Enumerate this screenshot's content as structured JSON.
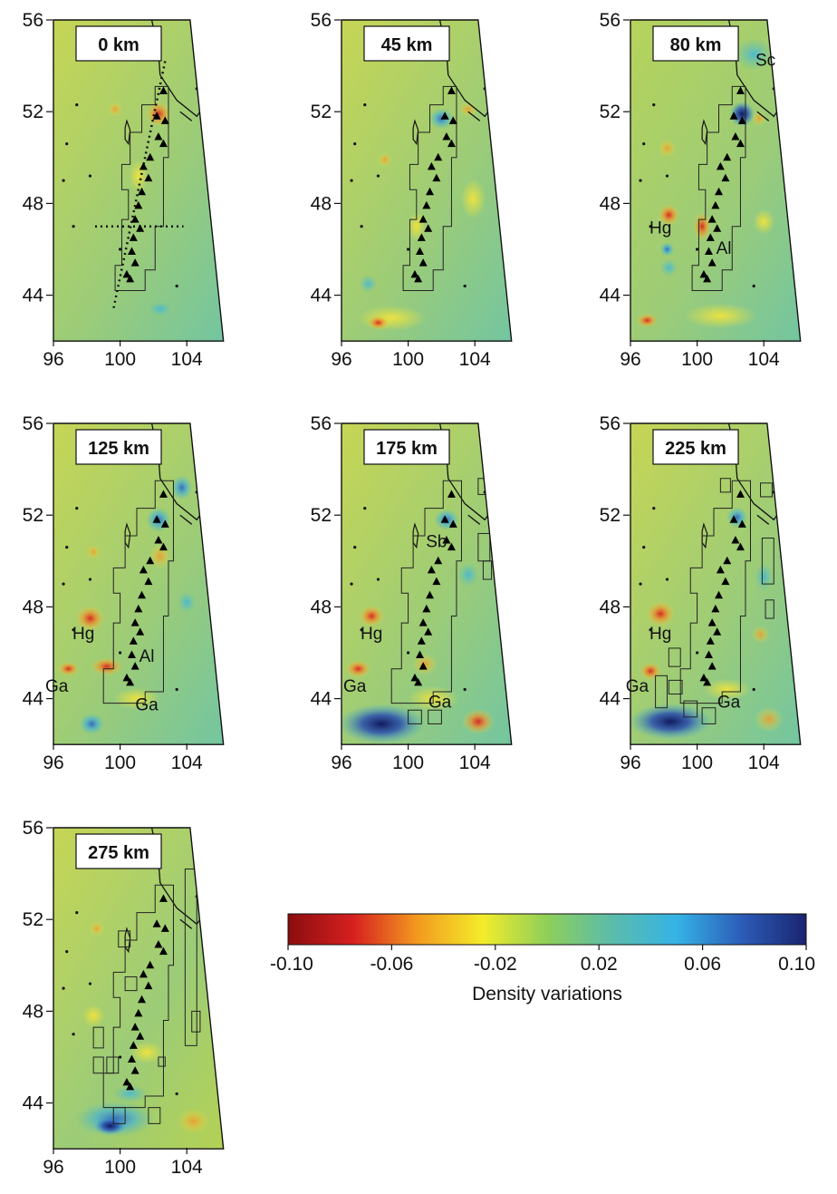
{
  "lon_ticks": [
    "96",
    "100",
    "104"
  ],
  "lat_ticks": [
    "56",
    "52",
    "48",
    "44"
  ],
  "panels": [
    {
      "depth_label": "0 km",
      "regions": []
    },
    {
      "depth_label": "45 km",
      "regions": []
    },
    {
      "depth_label": "80 km",
      "regions": [
        {
          "text": "Sc",
          "lon": 104.1,
          "lat": 54.0
        },
        {
          "text": "Hg",
          "lon": 97.8,
          "lat": 46.7
        },
        {
          "text": "Al",
          "lon": 101.6,
          "lat": 45.8
        }
      ]
    },
    {
      "depth_label": "125 km",
      "regions": [
        {
          "text": "Hg",
          "lon": 97.8,
          "lat": 46.6
        },
        {
          "text": "Al",
          "lon": 101.6,
          "lat": 45.6
        },
        {
          "text": "Ga",
          "lon": 96.2,
          "lat": 44.3
        },
        {
          "text": "Ga",
          "lon": 101.6,
          "lat": 43.5
        }
      ]
    },
    {
      "depth_label": "175 km",
      "regions": [
        {
          "text": "Sb",
          "lon": 101.7,
          "lat": 50.6
        },
        {
          "text": "Hg",
          "lon": 97.8,
          "lat": 46.6
        },
        {
          "text": "Ga",
          "lon": 96.8,
          "lat": 44.3
        },
        {
          "text": "Ga",
          "lon": 101.9,
          "lat": 43.6
        }
      ]
    },
    {
      "depth_label": "225 km",
      "regions": [
        {
          "text": "Hg",
          "lon": 97.8,
          "lat": 46.6
        },
        {
          "text": "Ga",
          "lon": 96.4,
          "lat": 44.3
        },
        {
          "text": "Ga",
          "lon": 101.9,
          "lat": 43.6
        }
      ]
    },
    {
      "depth_label": "275 km",
      "regions": []
    }
  ],
  "colorbar": {
    "title": "Density variations",
    "ticks": [
      "-0.10",
      "-0.06",
      "-0.02",
      "0.02",
      "0.06",
      "0.10"
    ],
    "min": -0.1,
    "max": 0.1,
    "stops": [
      "#8b0d0f",
      "#d61f1f",
      "#f39a1f",
      "#f3ec2a",
      "#8ecf5a",
      "#5bbcaa",
      "#35b3e6",
      "#2c5db8",
      "#1a2470"
    ]
  }
}
